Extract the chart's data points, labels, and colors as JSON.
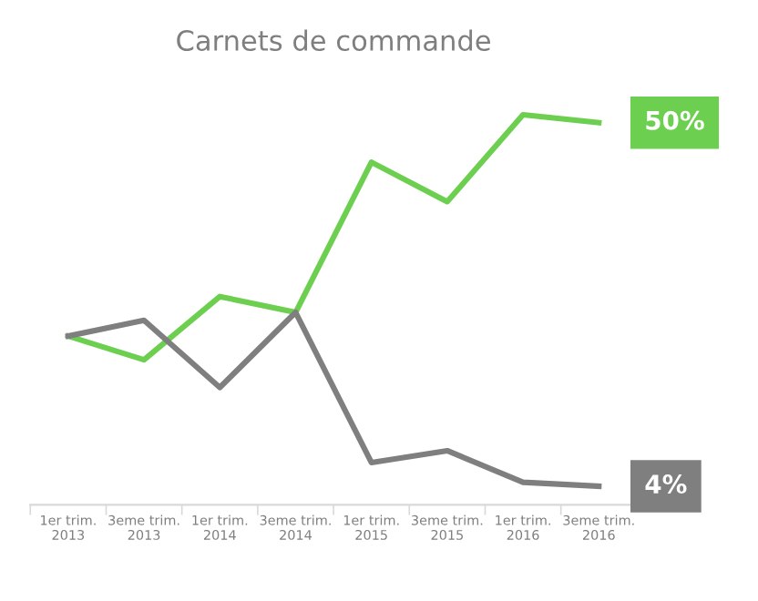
{
  "chart_data": {
    "type": "line",
    "title": "Carnets de commande",
    "categories": [
      "1er trim.\n2013",
      "3eme trim.\n2013",
      "1er trim.\n2014",
      "3eme trim.\n2014",
      "1er trim.\n2015",
      "3eme trim.\n2015",
      "1er trim.\n2016",
      "3eme trim.\n2016"
    ],
    "series": [
      {
        "color": "#6dcf4f",
        "values": [
          23,
          20,
          28,
          26,
          45,
          40,
          51,
          50
        ],
        "value_labels": [
          null,
          null,
          null,
          null,
          null,
          null,
          null,
          "50%"
        ]
      },
      {
        "color": "#7f7f7f",
        "values": [
          23,
          25,
          16.5,
          26,
          7,
          8.5,
          4.5,
          4
        ],
        "value_labels": [
          null,
          null,
          null,
          null,
          null,
          null,
          null,
          "4%"
        ]
      }
    ],
    "grid": false,
    "legend": false,
    "marker": "none",
    "line_style": "solid"
  }
}
